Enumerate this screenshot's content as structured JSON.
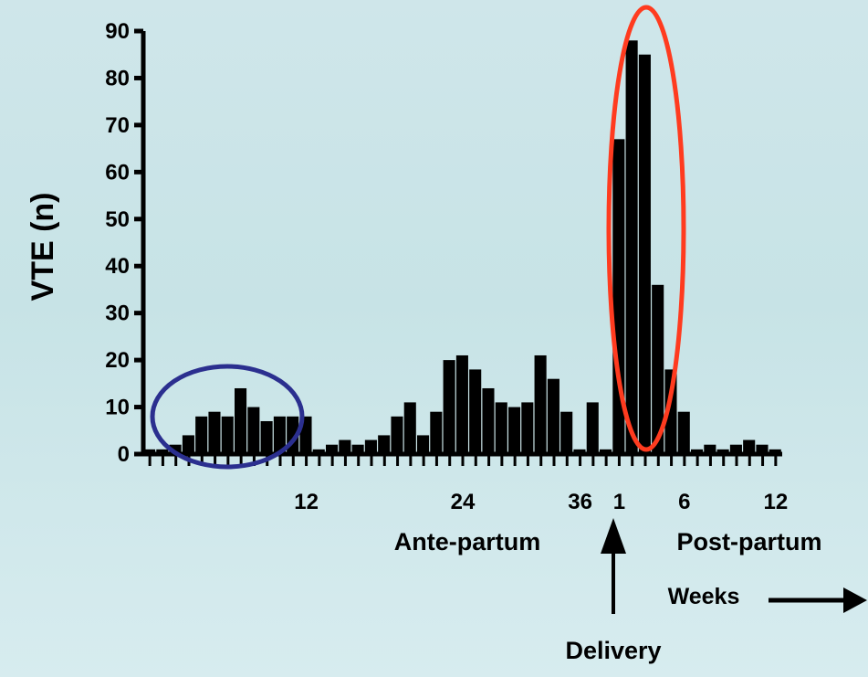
{
  "chart_data": {
    "type": "bar",
    "title": "",
    "ylabel": "VTE (n)",
    "xlabel": "Weeks",
    "ylim": [
      0,
      90
    ],
    "yticks": [
      0,
      10,
      20,
      30,
      40,
      50,
      60,
      70,
      80,
      90
    ],
    "x_tick_labels": [
      "12",
      "24",
      "36",
      "1",
      "6",
      "12"
    ],
    "period_labels": {
      "ante": "Ante-partum",
      "post": "Post-partum"
    },
    "delivery_label": "Delivery",
    "highlight_colors": {
      "early_pregnancy": "#2b2f8f",
      "early_postpartum": "#ff3b1f"
    },
    "bar_color": "#000000",
    "series": [
      {
        "values": [
          1,
          1,
          2,
          4,
          8,
          9,
          8,
          14,
          10,
          7,
          8,
          8,
          8,
          1,
          2,
          3,
          2,
          3,
          4,
          8,
          11,
          4,
          9,
          20,
          21,
          18,
          14,
          11,
          10,
          11,
          21,
          16,
          9,
          1,
          11,
          1,
          67,
          88,
          85,
          36,
          18,
          9,
          1,
          2,
          1,
          2,
          3,
          2,
          1
        ]
      }
    ]
  }
}
